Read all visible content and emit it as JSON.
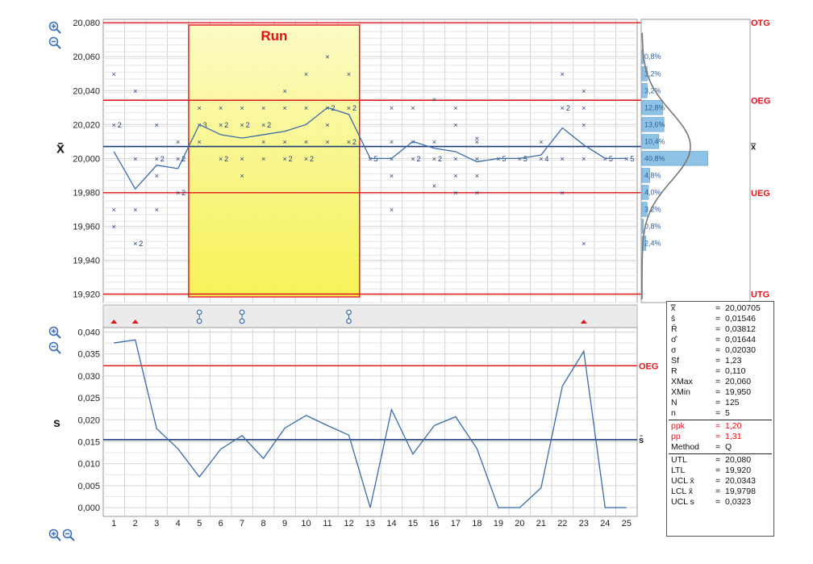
{
  "toolbar": {
    "zoom_in": "zoom-in-icon",
    "zoom_out": "zoom-out-icon"
  },
  "colors": {
    "limit_red": "#e0141b",
    "center_navy": "#1f3c78",
    "series_blue": "#3b6ba5",
    "run_fill": "#f7f24a",
    "hist_bar": "#8ec3e6"
  },
  "chart_data": [
    {
      "type": "line",
      "ylabel": "x̄",
      "x": [
        1,
        2,
        3,
        4,
        5,
        6,
        7,
        8,
        9,
        10,
        11,
        12,
        13,
        14,
        15,
        16,
        17,
        18,
        19,
        20,
        21,
        22,
        23,
        24,
        25
      ],
      "ylim": [
        19.915,
        20.082
      ],
      "yticks": [
        "20,080",
        "20,060",
        "20,040",
        "20,020",
        "20,000",
        "19,980",
        "19,960",
        "19,940",
        "19,920"
      ],
      "yticks_values": [
        20.08,
        20.06,
        20.04,
        20.02,
        20.0,
        19.98,
        19.96,
        19.94,
        19.92
      ],
      "series": [
        {
          "values": [
            20.004,
            19.982,
            19.996,
            19.994,
            20.02,
            20.014,
            20.012,
            20.014,
            20.016,
            20.02,
            20.03,
            20.026,
            20.0,
            20.0,
            20.01,
            20.006,
            20.004,
            19.998,
            20.0,
            20.0,
            20.002,
            20.018,
            20.008,
            20.0,
            20.0
          ]
        }
      ],
      "samples": [
        {
          "x": 1,
          "y": 20.05
        },
        {
          "x": 1,
          "y": 20.02,
          "n": "2"
        },
        {
          "x": 1,
          "y": 19.97
        },
        {
          "x": 1,
          "y": 19.96
        },
        {
          "x": 2,
          "y": 20.04
        },
        {
          "x": 2,
          "y": 20.0
        },
        {
          "x": 2,
          "y": 19.97
        },
        {
          "x": 2,
          "y": 19.95,
          "n": "2"
        },
        {
          "x": 3,
          "y": 20.02
        },
        {
          "x": 3,
          "y": 20.0,
          "n": "2"
        },
        {
          "x": 3,
          "y": 19.99
        },
        {
          "x": 3,
          "y": 19.97
        },
        {
          "x": 4,
          "y": 20.01
        },
        {
          "x": 4,
          "y": 20.0,
          "n": "2"
        },
        {
          "x": 4,
          "y": 19.98,
          "n": "2"
        },
        {
          "x": 5,
          "y": 20.03
        },
        {
          "x": 5,
          "y": 20.02,
          "n": "3"
        },
        {
          "x": 5,
          "y": 20.01
        },
        {
          "x": 6,
          "y": 20.03
        },
        {
          "x": 6,
          "y": 20.02,
          "n": "2"
        },
        {
          "x": 6,
          "y": 20.0,
          "n": "2"
        },
        {
          "x": 7,
          "y": 20.03
        },
        {
          "x": 7,
          "y": 20.02,
          "n": "2"
        },
        {
          "x": 7,
          "y": 20.0
        },
        {
          "x": 7,
          "y": 19.99
        },
        {
          "x": 8,
          "y": 20.03
        },
        {
          "x": 8,
          "y": 20.02,
          "n": "2"
        },
        {
          "x": 8,
          "y": 20.01
        },
        {
          "x": 8,
          "y": 20.0
        },
        {
          "x": 9,
          "y": 20.04
        },
        {
          "x": 9,
          "y": 20.03
        },
        {
          "x": 9,
          "y": 20.01
        },
        {
          "x": 9,
          "y": 20.0,
          "n": "2"
        },
        {
          "x": 10,
          "y": 20.05
        },
        {
          "x": 10,
          "y": 20.03
        },
        {
          "x": 10,
          "y": 20.01
        },
        {
          "x": 10,
          "y": 20.0,
          "n": "2"
        },
        {
          "x": 11,
          "y": 20.06
        },
        {
          "x": 11,
          "y": 20.03,
          "n": "2"
        },
        {
          "x": 11,
          "y": 20.02
        },
        {
          "x": 11,
          "y": 20.01
        },
        {
          "x": 12,
          "y": 20.05
        },
        {
          "x": 12,
          "y": 20.03,
          "n": "2"
        },
        {
          "x": 12,
          "y": 20.01,
          "n": "2"
        },
        {
          "x": 13,
          "y": 20.0,
          "n": "5"
        },
        {
          "x": 14,
          "y": 20.03
        },
        {
          "x": 14,
          "y": 20.01
        },
        {
          "x": 14,
          "y": 20.0
        },
        {
          "x": 14,
          "y": 19.99
        },
        {
          "x": 14,
          "y": 19.97
        },
        {
          "x": 15,
          "y": 20.03
        },
        {
          "x": 15,
          "y": 20.01
        },
        {
          "x": 15,
          "y": 20.0,
          "n": "2"
        },
        {
          "x": 16,
          "y": 20.035
        },
        {
          "x": 16,
          "y": 20.01
        },
        {
          "x": 16,
          "y": 20.0,
          "n": "2"
        },
        {
          "x": 16,
          "y": 19.984
        },
        {
          "x": 17,
          "y": 20.03
        },
        {
          "x": 17,
          "y": 20.02
        },
        {
          "x": 17,
          "y": 20.0
        },
        {
          "x": 17,
          "y": 19.99
        },
        {
          "x": 17,
          "y": 19.98
        },
        {
          "x": 18,
          "y": 20.012
        },
        {
          "x": 18,
          "y": 20.01
        },
        {
          "x": 18,
          "y": 20.0
        },
        {
          "x": 18,
          "y": 19.99
        },
        {
          "x": 18,
          "y": 19.98
        },
        {
          "x": 19,
          "y": 20.0,
          "n": "5"
        },
        {
          "x": 20,
          "y": 20.0,
          "n": "5"
        },
        {
          "x": 21,
          "y": 20.01
        },
        {
          "x": 21,
          "y": 20.0,
          "n": "4"
        },
        {
          "x": 22,
          "y": 20.05
        },
        {
          "x": 22,
          "y": 20.03,
          "n": "2"
        },
        {
          "x": 22,
          "y": 20.0
        },
        {
          "x": 22,
          "y": 19.98
        },
        {
          "x": 23,
          "y": 20.04
        },
        {
          "x": 23,
          "y": 20.03
        },
        {
          "x": 23,
          "y": 20.02
        },
        {
          "x": 23,
          "y": 20.0
        },
        {
          "x": 23,
          "y": 19.95
        },
        {
          "x": 24,
          "y": 20.0,
          "n": "5"
        },
        {
          "x": 25,
          "y": 20.0,
          "n": "5"
        }
      ],
      "limits": [
        {
          "label": "OTG",
          "value": 20.08
        },
        {
          "label": "OEG",
          "value": 20.0343
        },
        {
          "label": "UEG",
          "value": 19.9798
        },
        {
          "label": "UTG",
          "value": 19.92
        }
      ],
      "center": {
        "label": "x̿",
        "value": 20.00705
      },
      "run": {
        "label": "Run",
        "from": 5,
        "to": 12
      },
      "grid": true
    },
    {
      "type": "bar",
      "orientation": "horizontal",
      "categories": [
        20.06,
        20.05,
        20.04,
        20.03,
        20.02,
        20.01,
        20.0,
        19.99,
        19.98,
        19.97,
        19.96,
        19.95
      ],
      "values": [
        0.8,
        3.2,
        3.2,
        12.8,
        13.6,
        10.4,
        40.8,
        4.8,
        4.0,
        3.2,
        0.8,
        2.4
      ],
      "labels": [
        "0,8%",
        "3,2%",
        "3,2%",
        "12,8%",
        "13,6%",
        "10,4%",
        "40,8%",
        "4,8%",
        "4,0%",
        "3,2%",
        "0,8%",
        "2,4%"
      ],
      "curve": "normal"
    },
    {
      "type": "line",
      "ylabel": "s",
      "x": [
        1,
        2,
        3,
        4,
        5,
        6,
        7,
        8,
        9,
        10,
        11,
        12,
        13,
        14,
        15,
        16,
        17,
        18,
        19,
        20,
        21,
        22,
        23,
        24,
        25
      ],
      "xticks": [
        "1",
        "2",
        "3",
        "4",
        "5",
        "6",
        "7",
        "8",
        "9",
        "10",
        "11",
        "12",
        "13",
        "14",
        "15",
        "16",
        "17",
        "18",
        "19",
        "20",
        "21",
        "22",
        "23",
        "24",
        "25"
      ],
      "ylim": [
        -0.002,
        0.041
      ],
      "yticks": [
        "0,040",
        "0,035",
        "0,030",
        "0,025",
        "0,020",
        "0,015",
        "0,010",
        "0,005",
        "0,000"
      ],
      "yticks_values": [
        0.04,
        0.035,
        0.03,
        0.025,
        0.02,
        0.015,
        0.01,
        0.005,
        0.0
      ],
      "series": [
        {
          "values": [
            0.0375,
            0.0382,
            0.018,
            0.0134,
            0.007,
            0.0133,
            0.0164,
            0.0112,
            0.0181,
            0.021,
            0.0187,
            0.0165,
            0.0,
            0.0223,
            0.0122,
            0.0187,
            0.0207,
            0.0134,
            0.0,
            0.0,
            0.0045,
            0.0277,
            0.0356,
            0.0,
            0.0
          ]
        }
      ],
      "limits": [
        {
          "label": "OEG",
          "value": 0.0323
        }
      ],
      "center": {
        "label": "s̄",
        "value": 0.01546
      },
      "grid": true
    }
  ],
  "event_markers": {
    "triangles": [
      1,
      2,
      23
    ],
    "run_symbols": [
      5,
      7,
      12
    ]
  },
  "stats": {
    "rows": [
      {
        "k": "x̿",
        "v": "20,00705"
      },
      {
        "k": "s̄",
        "v": "0,01546"
      },
      {
        "k": "R̄",
        "v": "0,03812"
      },
      {
        "k": "σ̂",
        "v": "0,01644"
      },
      {
        "k": "σ",
        "v": "0,02030"
      },
      {
        "k": "Sf",
        "v": "1,23"
      },
      {
        "k": "R",
        "v": "0,110"
      },
      {
        "k": "XMax",
        "v": "20,060"
      },
      {
        "k": "XMin",
        "v": "19,950"
      },
      {
        "k": "N",
        "v": "125"
      },
      {
        "k": "n",
        "v": "5"
      }
    ],
    "red_rows": [
      {
        "k": "ppk",
        "v": "1,20"
      },
      {
        "k": "pp",
        "v": "1,31"
      }
    ],
    "method": {
      "k": "Method",
      "eq": "=",
      "v": "Q"
    },
    "limit_rows": [
      {
        "k": "UTL",
        "v": "20,080"
      },
      {
        "k": "LTL",
        "v": "19,920"
      },
      {
        "k": "UCL x̄",
        "v": "20,0343"
      },
      {
        "k": "LCL x̄",
        "v": "19,9798"
      },
      {
        "k": "UCL s",
        "v": "0,0323"
      }
    ]
  }
}
